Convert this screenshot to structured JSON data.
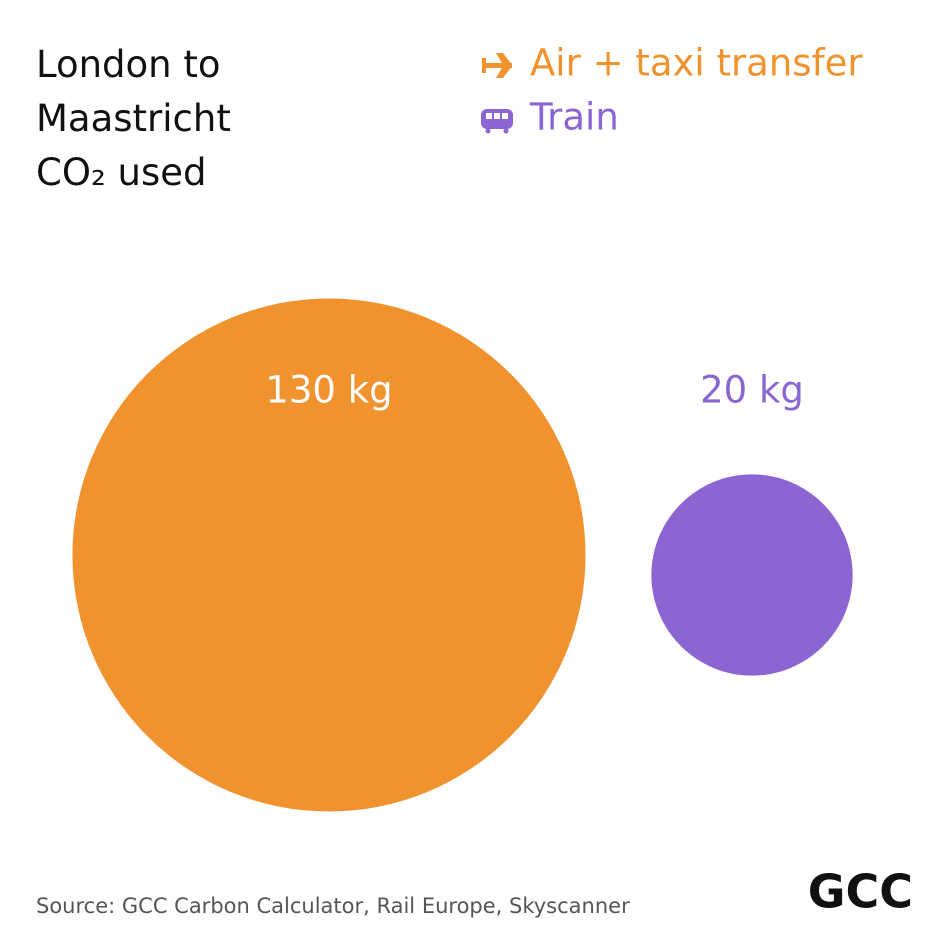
{
  "chart_data": {
    "type": "bubble",
    "title": "London to Maastricht CO₂ used",
    "series": [
      {
        "name": "Air + taxi transfer",
        "color": "#f0922d",
        "values": [
          130
        ],
        "value_labels": [
          "130 kg"
        ]
      },
      {
        "name": "Train",
        "color": "#8b66d3",
        "values": [
          20
        ],
        "value_labels": [
          "20 kg"
        ]
      }
    ],
    "source": "Source: GCC Carbon Calculator, Rail Europe, Skyscanner",
    "logo": "GCC"
  }
}
